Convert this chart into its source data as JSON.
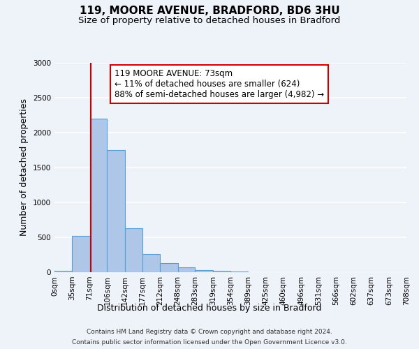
{
  "title": "119, MOORE AVENUE, BRADFORD, BD6 3HU",
  "subtitle": "Size of property relative to detached houses in Bradford",
  "xlabel": "Distribution of detached houses by size in Bradford",
  "ylabel": "Number of detached properties",
  "bin_labels": [
    "0sqm",
    "35sqm",
    "71sqm",
    "106sqm",
    "142sqm",
    "177sqm",
    "212sqm",
    "248sqm",
    "283sqm",
    "319sqm",
    "354sqm",
    "389sqm",
    "425sqm",
    "460sqm",
    "496sqm",
    "531sqm",
    "566sqm",
    "602sqm",
    "637sqm",
    "673sqm",
    "708sqm"
  ],
  "bin_edges": [
    0,
    35,
    71,
    106,
    142,
    177,
    212,
    248,
    283,
    319,
    354,
    389,
    425,
    460,
    496,
    531,
    566,
    602,
    637,
    673,
    708
  ],
  "bar_heights": [
    20,
    520,
    2200,
    1750,
    635,
    260,
    130,
    70,
    30,
    20,
    10,
    5,
    0,
    0,
    0,
    0,
    0,
    0,
    0,
    0
  ],
  "bar_color": "#aec6e8",
  "bar_edgecolor": "#5a9fd4",
  "bar_linewidth": 0.8,
  "vline_x": 73,
  "vline_color": "#cc0000",
  "ylim": [
    0,
    3000
  ],
  "yticks": [
    0,
    500,
    1000,
    1500,
    2000,
    2500,
    3000
  ],
  "annotation_text": "119 MOORE AVENUE: 73sqm\n← 11% of detached houses are smaller (624)\n88% of semi-detached houses are larger (4,982) →",
  "annotation_box_edgecolor": "#cc0000",
  "annotation_box_facecolor": "#ffffff",
  "footer_line1": "Contains HM Land Registry data © Crown copyright and database right 2024.",
  "footer_line2": "Contains public sector information licensed under the Open Government Licence v3.0.",
  "background_color": "#eef2f9",
  "grid_color": "#ffffff",
  "title_fontsize": 11,
  "subtitle_fontsize": 9.5,
  "axis_label_fontsize": 9,
  "tick_fontsize": 7.5,
  "annotation_fontsize": 8.5,
  "footer_fontsize": 6.5
}
